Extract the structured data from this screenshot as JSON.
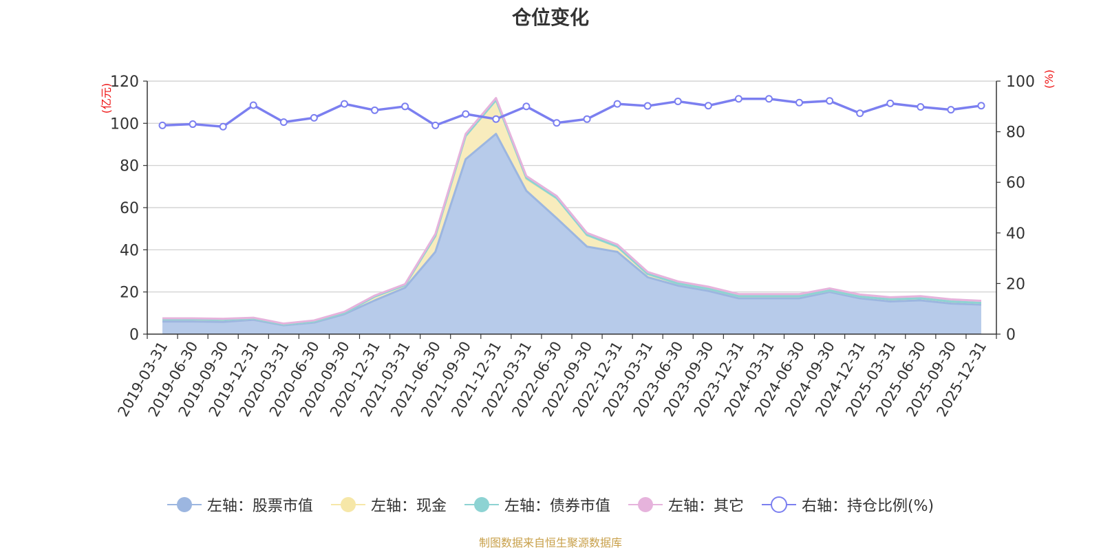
{
  "chart_data": {
    "type": "area",
    "title": "仓位变化",
    "left_axis_unit": "(亿元)",
    "right_axis_unit": "(%)",
    "ylim_left": [
      0,
      120
    ],
    "yticks_left": [
      "0",
      "20",
      "40",
      "60",
      "80",
      "100",
      "120"
    ],
    "ylim_right": [
      0,
      100
    ],
    "yticks_right": [
      "0",
      "20",
      "40",
      "60",
      "80",
      "100"
    ],
    "categories": [
      "2019-03-31",
      "2019-06-30",
      "2019-09-30",
      "2019-12-31",
      "2020-03-31",
      "2020-06-30",
      "2020-09-30",
      "2020-12-31",
      "2021-03-31",
      "2021-06-30",
      "2021-09-30",
      "2021-12-31",
      "2022-03-31",
      "2022-06-30",
      "2022-09-30",
      "2022-12-31",
      "2023-03-31",
      "2023-06-30",
      "2023-09-30",
      "2023-12-31",
      "2024-03-31",
      "2024-06-30",
      "2024-09-30",
      "2024-12-31",
      "2025-03-31",
      "2025-06-30",
      "2025-09-30",
      "2025-12-31"
    ],
    "stacked_series": [
      {
        "name": "左轴：股票市值",
        "color": "#9cb6e0",
        "fill": "#b7cbea",
        "values": [
          6.0,
          6.0,
          5.8,
          6.8,
          4.2,
          5.5,
          9.5,
          16.0,
          22.0,
          39.0,
          83.0,
          95.0,
          68.0,
          55.0,
          41.5,
          39.0,
          27.0,
          23.0,
          20.5,
          17.0,
          17.0,
          17.0,
          20.0,
          17.0,
          15.5,
          16.0,
          14.5,
          14.0
        ]
      },
      {
        "name": "左轴：现金",
        "color": "#f6e7a8",
        "fill": "#f8ecbd",
        "values": [
          1.0,
          1.0,
          1.0,
          0.6,
          0.4,
          0.5,
          0.5,
          1.8,
          1.2,
          7.5,
          11.0,
          16.0,
          5.5,
          9.5,
          5.5,
          2.5,
          1.5,
          1.0,
          1.0,
          1.0,
          1.0,
          1.0,
          0.7,
          0.8,
          1.0,
          1.0,
          1.0,
          0.8
        ]
      },
      {
        "name": "左轴：债券市值",
        "color": "#8dd3d3",
        "fill": "#a9dede",
        "values": [
          0.0,
          0.0,
          0.0,
          0.0,
          0.0,
          0.0,
          0.0,
          0.0,
          0.0,
          0.0,
          0.0,
          0.0,
          0.5,
          0.0,
          0.0,
          0.0,
          0.0,
          0.0,
          0.0,
          0.0,
          0.0,
          0.0,
          0.0,
          0.0,
          0.0,
          0.0,
          0.0,
          0.0
        ]
      },
      {
        "name": "左轴：其它",
        "color": "#e6b3dc",
        "fill": "#eec6e6",
        "values": [
          0.5,
          0.5,
          0.5,
          0.4,
          0.4,
          0.5,
          0.6,
          0.5,
          0.5,
          1.0,
          1.0,
          1.0,
          1.0,
          1.0,
          1.0,
          1.0,
          1.0,
          1.0,
          1.0,
          1.0,
          1.0,
          1.0,
          1.0,
          1.0,
          1.0,
          1.0,
          1.0,
          1.0
        ]
      }
    ],
    "line_series": {
      "name": "右轴：持仓比例(%)",
      "color": "#7b7ff0",
      "values": [
        82.5,
        83.0,
        82.0,
        90.5,
        83.8,
        85.5,
        91.0,
        88.5,
        90.0,
        82.5,
        87.0,
        85.0,
        90.0,
        83.5,
        85.0,
        91.0,
        90.2,
        92.0,
        90.3,
        93.0,
        93.0,
        91.5,
        92.2,
        87.3,
        91.2,
        89.8,
        88.7,
        90.3
      ]
    }
  },
  "legend": [
    {
      "label": "左轴：股票市值",
      "color": "#9cb6e0",
      "hollow": false
    },
    {
      "label": "左轴：现金",
      "color": "#f6e7a8",
      "hollow": false
    },
    {
      "label": "左轴：债券市值",
      "color": "#8dd3d3",
      "hollow": false
    },
    {
      "label": "左轴：其它",
      "color": "#e6b3dc",
      "hollow": false
    },
    {
      "label": "右轴：持仓比例(%)",
      "color": "#7b7ff0",
      "hollow": true
    }
  ],
  "source_text": "制图数据来自恒生聚源数据库"
}
